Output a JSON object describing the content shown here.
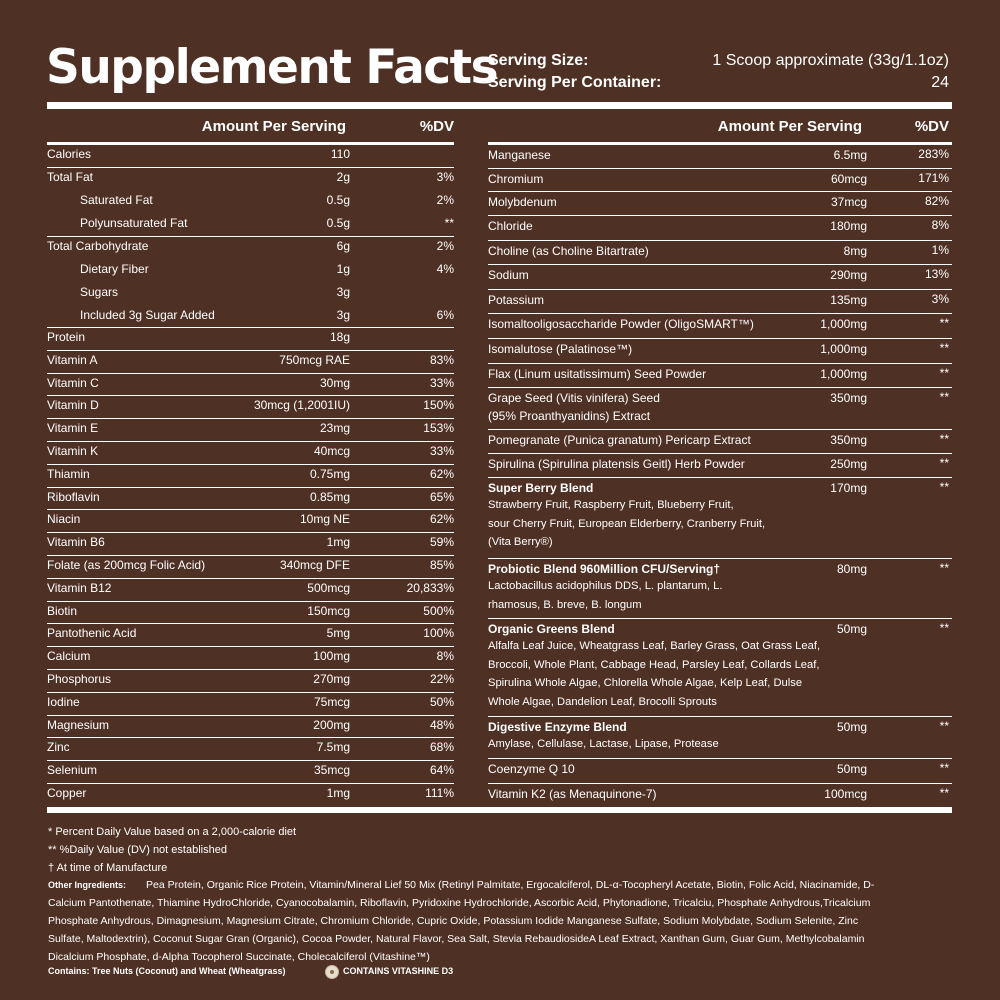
{
  "title": "Supplement Facts",
  "serving": {
    "size_label": "Serving Size:",
    "size_value": "1 Scoop approximate (33g/1.1oz)",
    "per_container_label": "Serving Per Container:",
    "per_container_value": "24"
  },
  "headers": {
    "amount": "Amount Per Serving",
    "dv": "%DV"
  },
  "left_rows": [
    {
      "name": "Calories",
      "amount": "110",
      "dv": ""
    },
    {
      "name": "Total Fat",
      "amount": "2g",
      "dv": "3%"
    },
    {
      "name": "Saturated Fat",
      "amount": "0.5g",
      "dv": "2%"
    },
    {
      "name": "Polyunsaturated Fat",
      "amount": "0.5g",
      "dv": "**"
    },
    {
      "name": "Total Carbohydrate",
      "amount": "6g",
      "dv": "2%"
    },
    {
      "name": "Dietary Fiber",
      "amount": "1g",
      "dv": "4%"
    },
    {
      "name": "Sugars",
      "amount": "3g",
      "dv": ""
    },
    {
      "name": "Included 3g Sugar Added",
      "amount": "3g",
      "dv": "6%"
    },
    {
      "name": "Protein",
      "amount": "18g",
      "dv": ""
    },
    {
      "name": "Vitamin A",
      "amount": "750mcg RAE",
      "dv": "83%"
    },
    {
      "name": "Vitamin C",
      "amount": "30mg",
      "dv": "33%"
    },
    {
      "name": "Vitamin D",
      "amount": "30mcg (1,2001IU)",
      "dv": "150%"
    },
    {
      "name": "Vitamin E",
      "amount": "23mg",
      "dv": "153%"
    },
    {
      "name": "Vitamin K",
      "amount": "40mcg",
      "dv": "33%"
    },
    {
      "name": "Thiamin",
      "amount": "0.75mg",
      "dv": "62%"
    },
    {
      "name": "Riboflavin",
      "amount": "0.85mg",
      "dv": "65%"
    },
    {
      "name": "Niacin",
      "amount": "10mg NE",
      "dv": "62%"
    },
    {
      "name": "Vitamin B6",
      "amount": "1mg",
      "dv": "59%"
    },
    {
      "name": "Folate (as 200mcg Folic Acid)",
      "amount": "340mcg DFE",
      "dv": "85%"
    },
    {
      "name": "Vitamin B12",
      "amount": "500mcg",
      "dv": "20,833%"
    },
    {
      "name": "Biotin",
      "amount": "150mcg",
      "dv": "500%"
    },
    {
      "name": "Pantothenic Acid",
      "amount": "5mg",
      "dv": "100%"
    },
    {
      "name": "Calcium",
      "amount": "100mg",
      "dv": "8%"
    },
    {
      "name": "Phosphorus",
      "amount": "270mg",
      "dv": "22%"
    },
    {
      "name": "Iodine",
      "amount": "75mcg",
      "dv": "50%"
    },
    {
      "name": "Magnesium",
      "amount": "200mg",
      "dv": "48%"
    },
    {
      "name": "Zinc",
      "amount": "7.5mg",
      "dv": "68%"
    },
    {
      "name": "Selenium",
      "amount": "35mcg",
      "dv": "64%"
    },
    {
      "name": "Copper",
      "amount": "1mg",
      "dv": "111%"
    }
  ],
  "right_rows": [
    {
      "name": "Manganese",
      "amount": "6.5mg",
      "dv": "283%"
    },
    {
      "name": "Chromium",
      "amount": "60mcg",
      "dv": "171%"
    },
    {
      "name": "Molybdenum",
      "amount": "37mcg",
      "dv": "82%"
    },
    {
      "name": "Chloride",
      "amount": "180mg",
      "dv": "8%"
    },
    {
      "name": "Choline (as Choline Bitartrate)",
      "amount": "8mg",
      "dv": "1%"
    },
    {
      "name": "Sodium",
      "amount": "290mg",
      "dv": "13%"
    },
    {
      "name": "Potassium",
      "amount": "135mg",
      "dv": "3%"
    },
    {
      "name": "Isomaltooligosaccharide Powder (OligoSMART™)",
      "amount": "1,000mg",
      "dv": "**"
    },
    {
      "name": "Isomalutose (Palatinose™)",
      "amount": "1,000mg",
      "dv": "**"
    },
    {
      "name": "Flax (Linum usitatissimum) Seed Powder",
      "amount": "1,000mg",
      "dv": "**"
    },
    {
      "name": "Grape Seed (Vitis vinifera) Seed",
      "name2": "(95% Proanthyanidins) Extract",
      "amount": "350mg",
      "dv": "**"
    },
    {
      "name": "Pomegranate (Punica granatum) Pericarp Extract",
      "amount": "350mg",
      "dv": "**"
    },
    {
      "name": "Spirulina (Spirulina platensis Geitl) Herb Powder",
      "amount": "250mg",
      "dv": "**"
    },
    {
      "name": "Super Berry Blend",
      "amount": "170mg",
      "dv": "**",
      "sub": [
        "Strawberry Fruit, Raspberry Fruit, Blueberry Fruit,",
        "sour Cherry Fruit, European Elderberry, Cranberry Fruit,",
        "(Vita Berry®)"
      ]
    },
    {
      "name": "Probiotic Blend 960Million CFU/Serving†",
      "amount": "80mg",
      "dv": "**",
      "sub": [
        "Lactobacillus acidophilus DDS, L. plantarum, L.",
        "rhamosus, B. breve, B. longum"
      ]
    },
    {
      "name": "Organic Greens Blend",
      "amount": "50mg",
      "dv": "**",
      "sub": [
        "Alfalfa Leaf Juice, Wheatgrass Leaf, Barley Grass, Oat Grass Leaf,",
        "Broccoli, Whole Plant, Cabbage Head, Parsley Leaf, Collards Leaf,",
        "Spirulina Whole Algae, Chlorella Whole Algae, Kelp Leaf, Dulse",
        "Whole Algae, Dandelion Leaf, Brocolli Sprouts"
      ]
    },
    {
      "name": "Digestive Enzyme Blend",
      "amount": "50mg",
      "dv": "**",
      "sub": [
        "Amylase, Cellulase, Lactase, Lipase, Protease"
      ]
    },
    {
      "name": "Coenzyme Q 10",
      "amount": "50mg",
      "dv": "**"
    },
    {
      "name": "Vitamin K2 (as Menaquinone-7)",
      "amount": "100mcg",
      "dv": "**"
    }
  ],
  "footnotes": [
    "* Percent Daily Value based on a 2,000-calorie diet",
    "** %Daily Value (DV) not established",
    "† At time of Manufacture"
  ],
  "other_ingredients": {
    "label": "Other Ingredients:",
    "lines": [
      "Pea Protein, Organic Rice Protein, Vitamin/Mineral Lief 50 Mix (Retinyl Palmitate, Ergocalciferol, DL-α-Tocopheryl Acetate, Biotin, Folic Acid, Niacinamide, D-",
      "Calcium Pantothenate, Thiamine HydroChloride, Cyanocobalamin, Riboflavin, Pyridoxine Hydrochloride, Ascorbic Acid, Phytonadione, Tricalciu, Phosphate Anhydrous,Tricalcium",
      "Phosphate Anhydrous, Dimagnesium, Magnesium Citrate, Chromium Chloride, Cupric Oxide, Potassium Iodide Manganese Sulfate, Sodium Molybdate, Sodium Selenite, Zinc",
      "Sulfate, Maltodextrin), Coconut Sugar Gran (Organic), Cocoa Powder, Natural Flavor, Sea Salt, Stevia RebaudiosideA Leaf Extract, Xanthan Gum, Guar Gum, Methylcobalamin",
      "Dicalcium Phosphate, d-Alpha Tocopherol Succinate, Cholecalciferol (Vitashine™)"
    ]
  },
  "contains": "Contains: Tree Nuts (Coconut) and Wheat (Wheatgrass)",
  "vitashine": "CONTAINS VITASHINE D3",
  "colors": {
    "background": "#4f3024",
    "text": "#ffffff"
  }
}
